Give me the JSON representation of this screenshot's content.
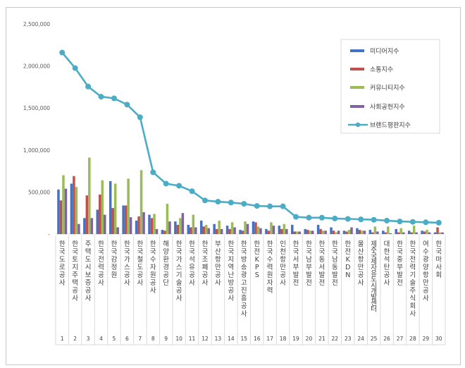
{
  "chart_data": {
    "type": "bar",
    "title": "",
    "xlabel": "",
    "ylabel": "",
    "ylim": [
      0,
      2500000
    ],
    "yticks": [
      "-",
      "500,000",
      "1,000,000",
      "1,500,000",
      "2,000,000",
      "2,500,000"
    ],
    "grid": false,
    "legend_position": "top-right",
    "ranks": [
      "1",
      "2",
      "3",
      "4",
      "5",
      "6",
      "7",
      "8",
      "9",
      "10",
      "11",
      "12",
      "13",
      "14",
      "15",
      "16",
      "17",
      "18",
      "19",
      "20",
      "21",
      "22",
      "23",
      "24",
      "25",
      "26",
      "27",
      "28",
      "29",
      "30"
    ],
    "categories": [
      "한국도로공사",
      "한국토지주택공사",
      "주택도시보증공사",
      "한국전력공사",
      "한국감정원",
      "한국가스공사",
      "한국철도공사",
      "한국수자원공사",
      "해양환경공단",
      "한국가스기술공사",
      "한국석유공사",
      "한국조폐공사",
      "부산항만공사",
      "한국지역난방공사",
      "한국방송광고진흥공사",
      "한전KPS",
      "한국수력원자력",
      "인천항만공사",
      "한국서부발전",
      "한국남부발전",
      "한국동서발전",
      "한국남동발전",
      "한전KDN",
      "울산항만공사",
      "제주국제자유도시개발센터",
      "대한석탄공사",
      "한국중부발전",
      "한국전력기술주식회사",
      "여수광양항만공사",
      "한국마사회"
    ],
    "series": [
      {
        "name": "미디어지수",
        "type": "bar",
        "color": "#4472c4",
        "values": [
          530000,
          600000,
          190000,
          290000,
          630000,
          340000,
          160000,
          230000,
          50000,
          150000,
          110000,
          160000,
          120000,
          100000,
          50000,
          150000,
          60000,
          100000,
          110000,
          60000,
          110000,
          80000,
          40000,
          70000,
          50000,
          40000,
          60000,
          40000,
          40000,
          20000
        ]
      },
      {
        "name": "소통지수",
        "type": "bar",
        "color": "#c0504d",
        "values": [
          400000,
          690000,
          460000,
          470000,
          310000,
          340000,
          210000,
          190000,
          40000,
          110000,
          80000,
          90000,
          60000,
          60000,
          40000,
          140000,
          40000,
          60000,
          30000,
          50000,
          60000,
          40000,
          30000,
          50000,
          20000,
          20000,
          20000,
          20000,
          30000,
          80000
        ]
      },
      {
        "name": "커뮤니티지수",
        "type": "bar",
        "color": "#9bbb59",
        "values": [
          700000,
          560000,
          910000,
          640000,
          600000,
          660000,
          760000,
          240000,
          360000,
          190000,
          230000,
          110000,
          160000,
          140000,
          150000,
          90000,
          140000,
          120000,
          30000,
          40000,
          40000,
          20000,
          50000,
          40000,
          90000,
          90000,
          70000,
          100000,
          50000,
          20000
        ]
      },
      {
        "name": "사회공헌지수",
        "type": "bar",
        "color": "#8064a2",
        "values": [
          540000,
          120000,
          190000,
          230000,
          80000,
          200000,
          260000,
          60000,
          150000,
          250000,
          80000,
          70000,
          60000,
          80000,
          120000,
          70000,
          100000,
          60000,
          30000,
          40000,
          40000,
          40000,
          80000,
          40000,
          30000,
          10000,
          20000,
          20000,
          20000,
          20000
        ]
      },
      {
        "name": "브랜드평판지수",
        "type": "line",
        "color": "#4bacc6",
        "values": [
          2160000,
          1975000,
          1755000,
          1635000,
          1615000,
          1540000,
          1390000,
          735000,
          600000,
          575000,
          510000,
          400000,
          385000,
          375000,
          360000,
          335000,
          330000,
          330000,
          205000,
          195000,
          195000,
          185000,
          180000,
          175000,
          170000,
          160000,
          150000,
          145000,
          140000,
          135000
        ]
      }
    ]
  }
}
